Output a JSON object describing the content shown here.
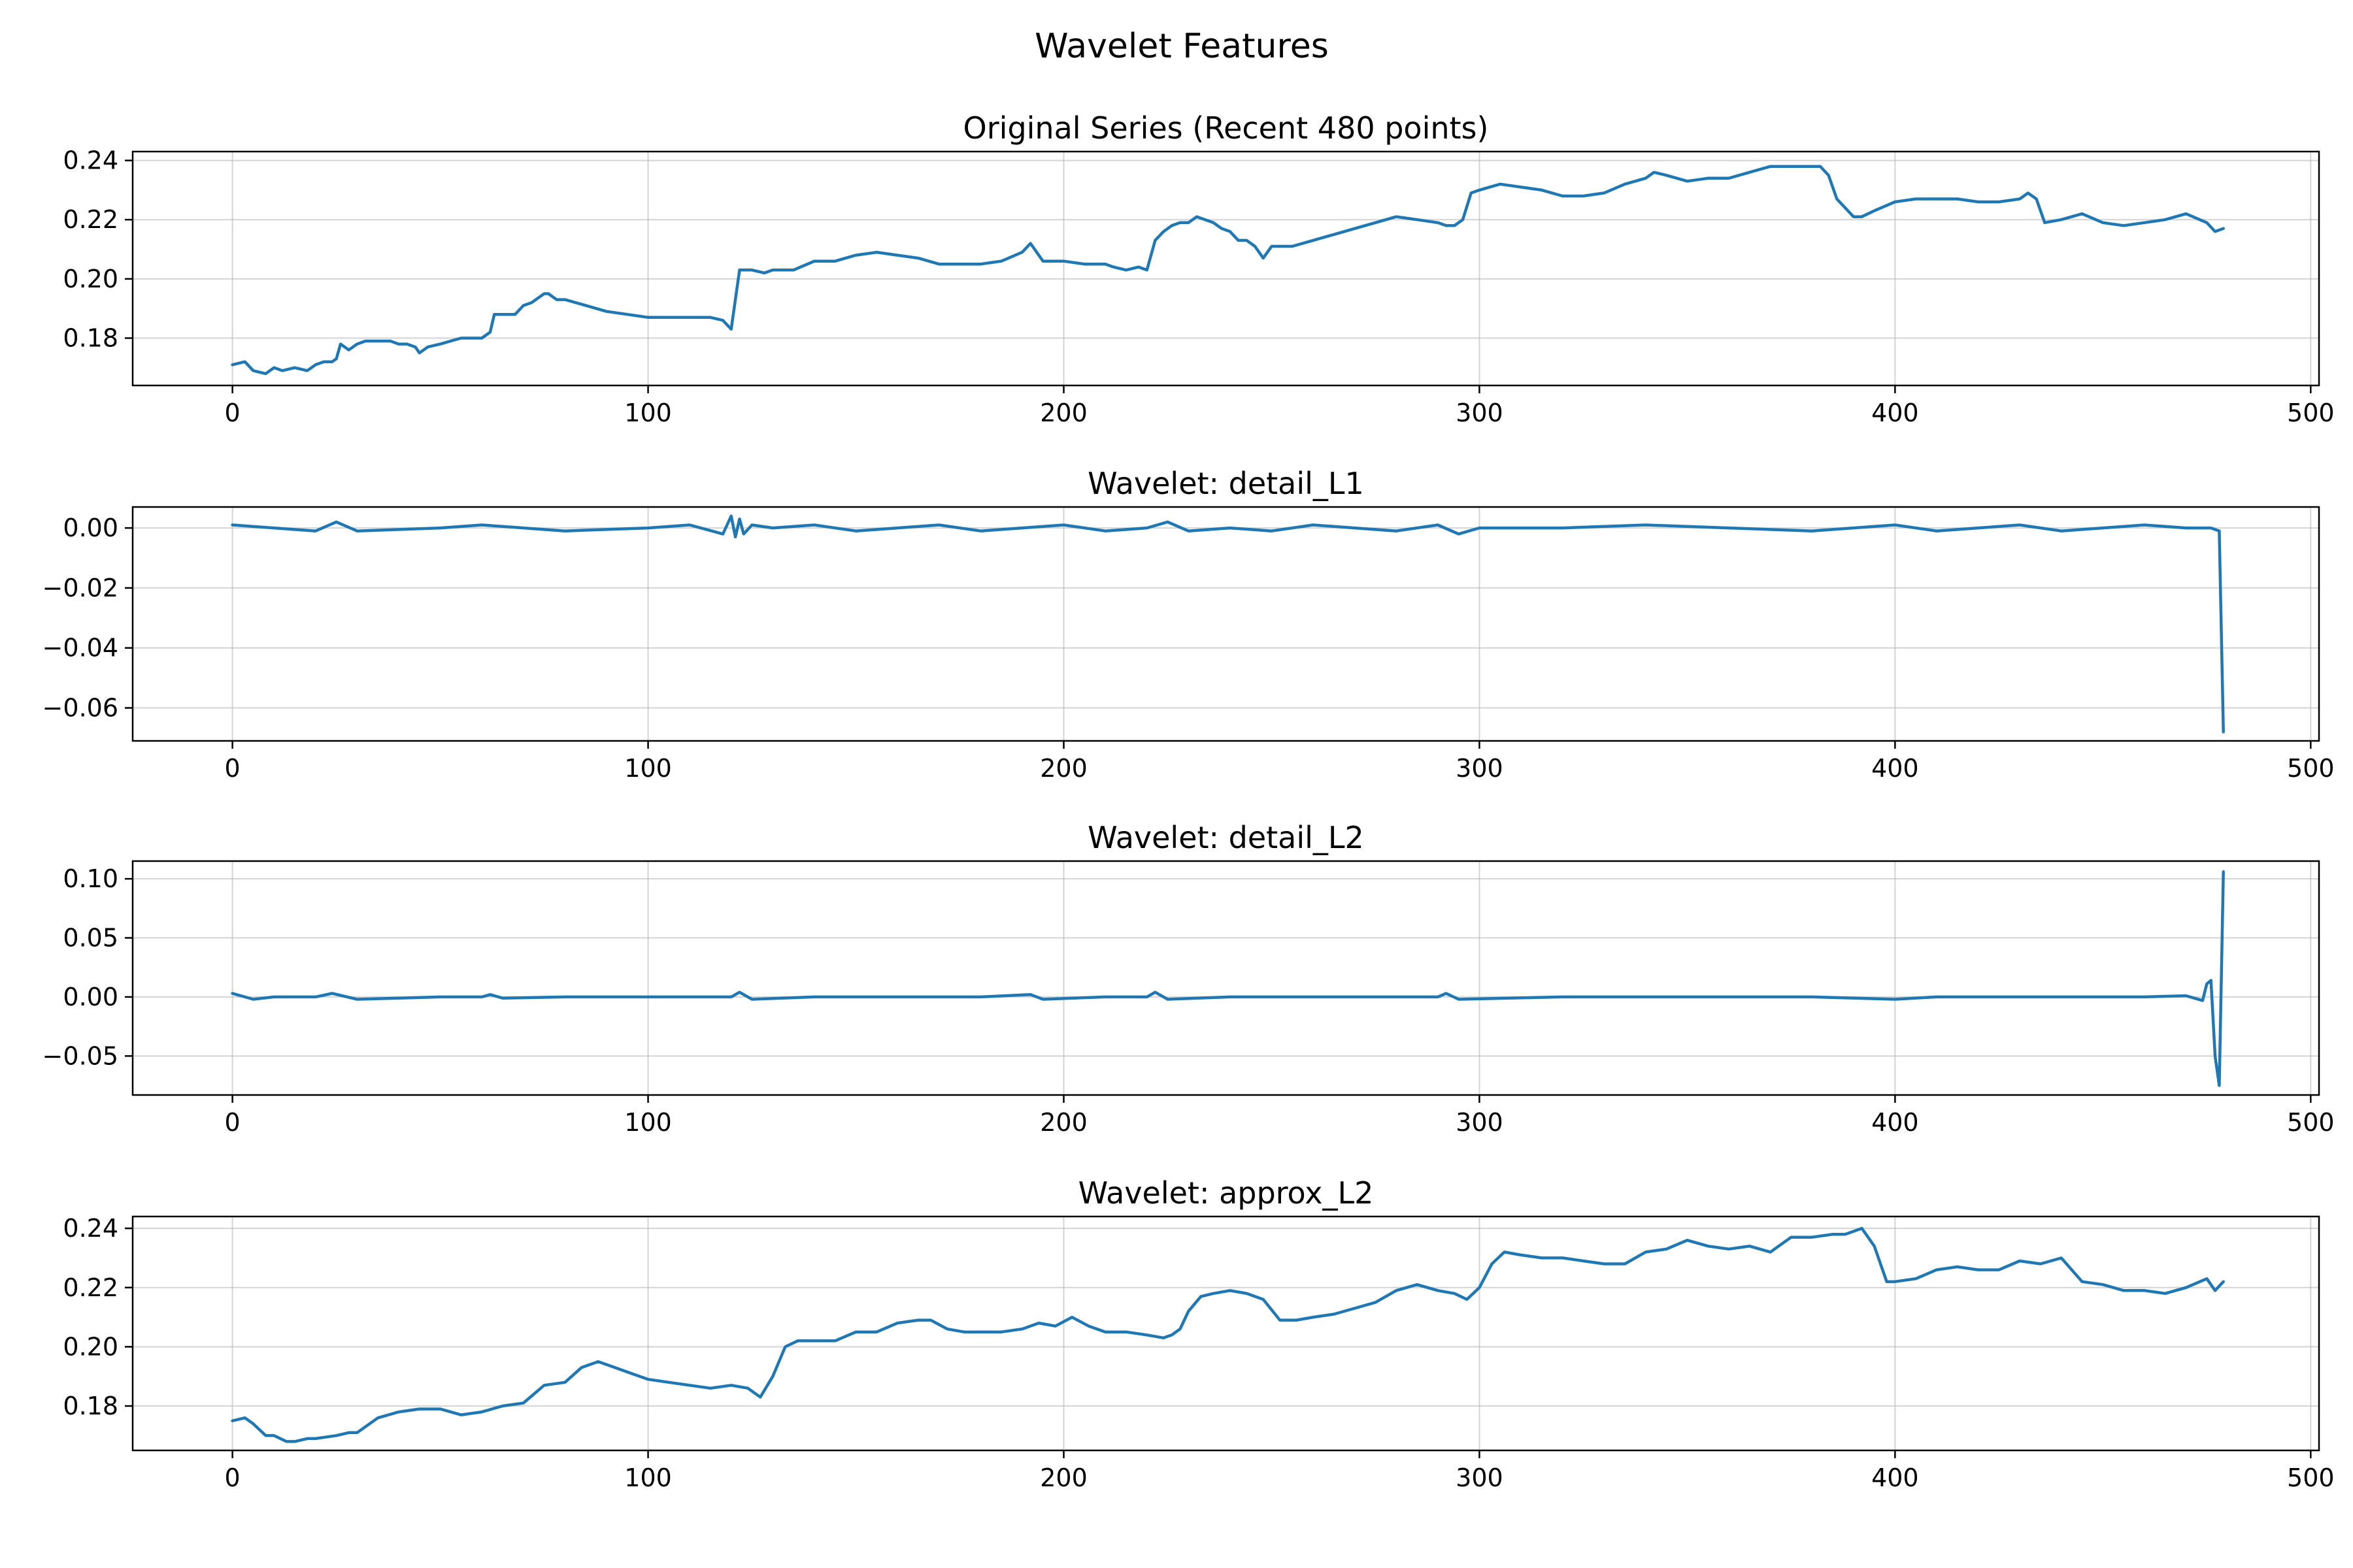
{
  "figure": {
    "title": "Wavelet Features"
  },
  "chart_data": [
    {
      "type": "line",
      "title": "Original Series (Recent 480 points)",
      "xlim": [
        -24,
        502
      ],
      "ylim": [
        0.164,
        0.243
      ],
      "xticks": [
        0,
        100,
        200,
        300,
        400,
        500
      ],
      "xtick_labels": [
        "0",
        "100",
        "200",
        "300",
        "400",
        "500"
      ],
      "yticks": [
        0.18,
        0.2,
        0.22,
        0.24
      ],
      "ytick_labels": [
        "0.18",
        "0.20",
        "0.22",
        "0.24"
      ],
      "grid": true,
      "color": "#1f77b4",
      "series": [
        {
          "x": [
            0,
            3,
            5,
            8,
            10,
            12,
            15,
            18,
            20,
            22,
            24,
            25,
            26,
            27,
            28,
            30,
            32,
            35,
            38,
            40,
            42,
            44,
            45,
            47,
            50,
            55,
            60,
            62,
            63,
            65,
            68,
            70,
            72,
            75,
            76,
            78,
            80,
            85,
            90,
            95,
            100,
            105,
            110,
            115,
            118,
            120,
            121,
            122,
            123,
            125,
            128,
            130,
            135,
            140,
            145,
            150,
            155,
            160,
            165,
            170,
            175,
            180,
            185,
            190,
            192,
            195,
            200,
            205,
            210,
            212,
            215,
            218,
            220,
            222,
            224,
            226,
            228,
            230,
            232,
            234,
            236,
            238,
            240,
            242,
            244,
            246,
            248,
            250,
            255,
            260,
            265,
            270,
            275,
            280,
            285,
            290,
            292,
            294,
            296,
            298,
            300,
            305,
            310,
            315,
            320,
            325,
            330,
            335,
            340,
            342,
            345,
            350,
            355,
            360,
            365,
            370,
            375,
            380,
            382,
            384,
            386,
            390,
            392,
            395,
            400,
            405,
            410,
            415,
            420,
            425,
            430,
            432,
            434,
            436,
            440,
            445,
            450,
            455,
            460,
            465,
            470,
            475,
            477,
            479
          ],
          "y": [
            0.171,
            0.172,
            0.169,
            0.168,
            0.17,
            0.169,
            0.17,
            0.169,
            0.171,
            0.172,
            0.172,
            0.173,
            0.178,
            0.177,
            0.176,
            0.178,
            0.179,
            0.179,
            0.179,
            0.178,
            0.178,
            0.177,
            0.175,
            0.177,
            0.178,
            0.18,
            0.18,
            0.182,
            0.188,
            0.188,
            0.188,
            0.191,
            0.192,
            0.195,
            0.195,
            0.193,
            0.193,
            0.191,
            0.189,
            0.188,
            0.187,
            0.187,
            0.187,
            0.187,
            0.186,
            0.183,
            0.193,
            0.203,
            0.203,
            0.203,
            0.202,
            0.203,
            0.203,
            0.206,
            0.206,
            0.208,
            0.209,
            0.208,
            0.207,
            0.205,
            0.205,
            0.205,
            0.206,
            0.209,
            0.212,
            0.206,
            0.206,
            0.205,
            0.205,
            0.204,
            0.203,
            0.204,
            0.203,
            0.213,
            0.216,
            0.218,
            0.219,
            0.219,
            0.221,
            0.22,
            0.219,
            0.217,
            0.216,
            0.213,
            0.213,
            0.211,
            0.207,
            0.211,
            0.211,
            0.213,
            0.215,
            0.217,
            0.219,
            0.221,
            0.22,
            0.219,
            0.218,
            0.218,
            0.22,
            0.229,
            0.23,
            0.232,
            0.231,
            0.23,
            0.228,
            0.228,
            0.229,
            0.232,
            0.234,
            0.236,
            0.235,
            0.233,
            0.234,
            0.234,
            0.236,
            0.238,
            0.238,
            0.238,
            0.238,
            0.235,
            0.227,
            0.221,
            0.221,
            0.223,
            0.226,
            0.227,
            0.227,
            0.227,
            0.226,
            0.226,
            0.227,
            0.229,
            0.227,
            0.219,
            0.22,
            0.222,
            0.219,
            0.218,
            0.219,
            0.22,
            0.222,
            0.219,
            0.216,
            0.217
          ]
        }
      ]
    },
    {
      "type": "line",
      "title": "Wavelet: detail_L1",
      "xlim": [
        -24,
        502
      ],
      "ylim": [
        -0.071,
        0.007
      ],
      "xticks": [
        0,
        100,
        200,
        300,
        400,
        500
      ],
      "xtick_labels": [
        "0",
        "100",
        "200",
        "300",
        "400",
        "500"
      ],
      "yticks": [
        -0.06,
        -0.04,
        -0.02,
        0.0
      ],
      "ytick_labels": [
        "−0.06",
        "−0.04",
        "−0.02",
        "0.00"
      ],
      "grid": true,
      "color": "#1f77b4",
      "series": [
        {
          "x": [
            0,
            10,
            20,
            25,
            30,
            50,
            60,
            80,
            100,
            110,
            118,
            120,
            121,
            122,
            123,
            125,
            130,
            140,
            150,
            160,
            170,
            180,
            190,
            200,
            210,
            220,
            225,
            230,
            240,
            250,
            260,
            270,
            280,
            290,
            295,
            300,
            320,
            340,
            360,
            380,
            400,
            410,
            420,
            430,
            440,
            450,
            460,
            470,
            476,
            478,
            479
          ],
          "y": [
            0.001,
            0.0,
            -0.001,
            0.002,
            -0.001,
            0.0,
            0.001,
            -0.001,
            0.0,
            0.001,
            -0.002,
            0.004,
            -0.003,
            0.003,
            -0.002,
            0.001,
            0.0,
            0.001,
            -0.001,
            0.0,
            0.001,
            -0.001,
            0.0,
            0.001,
            -0.001,
            0.0,
            0.002,
            -0.001,
            0.0,
            -0.001,
            0.001,
            0.0,
            -0.001,
            0.001,
            -0.002,
            0.0,
            0.0,
            0.001,
            0.0,
            -0.001,
            0.001,
            -0.001,
            0.0,
            0.001,
            -0.001,
            0.0,
            0.001,
            0.0,
            0.0,
            -0.001,
            -0.068
          ]
        }
      ]
    },
    {
      "type": "line",
      "title": "Wavelet: detail_L2",
      "xlim": [
        -24,
        502
      ],
      "ylim": [
        -0.083,
        0.115
      ],
      "xticks": [
        0,
        100,
        200,
        300,
        400,
        500
      ],
      "xtick_labels": [
        "0",
        "100",
        "200",
        "300",
        "400",
        "500"
      ],
      "yticks": [
        -0.05,
        0.0,
        0.05,
        0.1
      ],
      "ytick_labels": [
        "−0.05",
        "0.00",
        "0.05",
        "0.10"
      ],
      "grid": true,
      "color": "#1f77b4",
      "series": [
        {
          "x": [
            0,
            5,
            10,
            20,
            24,
            30,
            50,
            60,
            62,
            65,
            80,
            100,
            120,
            122,
            125,
            140,
            160,
            180,
            192,
            195,
            210,
            220,
            222,
            225,
            240,
            260,
            280,
            290,
            292,
            295,
            320,
            340,
            360,
            380,
            400,
            410,
            420,
            440,
            450,
            460,
            470,
            474,
            475,
            476,
            477,
            478,
            479
          ],
          "y": [
            0.003,
            -0.002,
            0.0,
            0.0,
            0.003,
            -0.002,
            0.0,
            0.0,
            0.002,
            -0.001,
            0.0,
            0.0,
            0.0,
            0.004,
            -0.002,
            0.0,
            0.0,
            0.0,
            0.002,
            -0.002,
            0.0,
            0.0,
            0.004,
            -0.002,
            0.0,
            0.0,
            0.0,
            0.0,
            0.003,
            -0.002,
            0.0,
            0.0,
            0.0,
            0.0,
            -0.002,
            0.0,
            0.0,
            0.0,
            0.0,
            0.0,
            0.001,
            -0.003,
            0.011,
            0.014,
            -0.05,
            -0.075,
            0.106
          ]
        }
      ]
    },
    {
      "type": "line",
      "title": "Wavelet: approx_L2",
      "xlim": [
        -24,
        502
      ],
      "ylim": [
        0.165,
        0.244
      ],
      "xticks": [
        0,
        100,
        200,
        300,
        400,
        500
      ],
      "xtick_labels": [
        "0",
        "100",
        "200",
        "300",
        "400",
        "500"
      ],
      "yticks": [
        0.18,
        0.2,
        0.22,
        0.24
      ],
      "ytick_labels": [
        "0.18",
        "0.20",
        "0.22",
        "0.24"
      ],
      "grid": true,
      "color": "#1f77b4",
      "series": [
        {
          "x": [
            0,
            3,
            5,
            8,
            10,
            13,
            15,
            18,
            20,
            25,
            28,
            30,
            35,
            40,
            45,
            50,
            55,
            60,
            65,
            70,
            75,
            80,
            84,
            88,
            92,
            96,
            100,
            105,
            110,
            115,
            120,
            124,
            127,
            130,
            133,
            136,
            140,
            145,
            150,
            155,
            160,
            165,
            168,
            172,
            176,
            180,
            185,
            190,
            194,
            198,
            202,
            206,
            210,
            215,
            220,
            224,
            226,
            228,
            230,
            233,
            236,
            240,
            244,
            248,
            252,
            256,
            260,
            265,
            270,
            275,
            280,
            285,
            290,
            294,
            297,
            300,
            303,
            306,
            310,
            315,
            320,
            325,
            330,
            335,
            340,
            345,
            350,
            355,
            360,
            365,
            370,
            375,
            380,
            385,
            388,
            390,
            392,
            395,
            398,
            400,
            405,
            410,
            415,
            420,
            425,
            430,
            435,
            440,
            445,
            450,
            455,
            460,
            465,
            470,
            475,
            477,
            479
          ],
          "y": [
            0.175,
            0.176,
            0.174,
            0.17,
            0.17,
            0.168,
            0.168,
            0.169,
            0.169,
            0.17,
            0.171,
            0.171,
            0.176,
            0.178,
            0.179,
            0.179,
            0.177,
            0.178,
            0.18,
            0.181,
            0.187,
            0.188,
            0.193,
            0.195,
            0.193,
            0.191,
            0.189,
            0.188,
            0.187,
            0.186,
            0.187,
            0.186,
            0.183,
            0.19,
            0.2,
            0.202,
            0.202,
            0.202,
            0.205,
            0.205,
            0.208,
            0.209,
            0.209,
            0.206,
            0.205,
            0.205,
            0.205,
            0.206,
            0.208,
            0.207,
            0.21,
            0.207,
            0.205,
            0.205,
            0.204,
            0.203,
            0.204,
            0.206,
            0.212,
            0.217,
            0.218,
            0.219,
            0.218,
            0.216,
            0.209,
            0.209,
            0.21,
            0.211,
            0.213,
            0.215,
            0.219,
            0.221,
            0.219,
            0.218,
            0.216,
            0.22,
            0.228,
            0.232,
            0.231,
            0.23,
            0.23,
            0.229,
            0.228,
            0.228,
            0.232,
            0.233,
            0.236,
            0.234,
            0.233,
            0.234,
            0.232,
            0.237,
            0.237,
            0.238,
            0.238,
            0.239,
            0.24,
            0.234,
            0.222,
            0.222,
            0.223,
            0.226,
            0.227,
            0.226,
            0.226,
            0.229,
            0.228,
            0.23,
            0.222,
            0.221,
            0.219,
            0.219,
            0.218,
            0.22,
            0.223,
            0.219,
            0.222
          ]
        }
      ]
    }
  ]
}
